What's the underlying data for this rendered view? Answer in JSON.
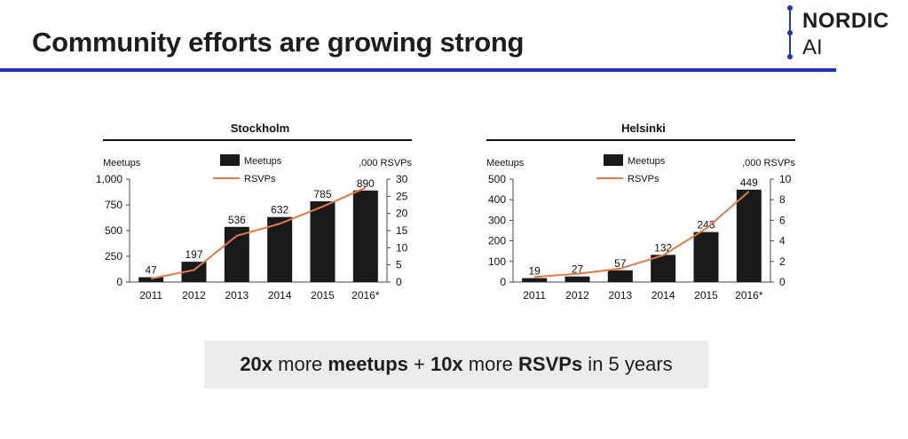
{
  "slide": {
    "title": "Community efforts are growing strong",
    "logo": {
      "line1": "NORDIC",
      "line2": "AI"
    },
    "callout": {
      "s1": "20x",
      "s2": " more ",
      "s3": "meetups",
      "s4": " + ",
      "s5": "10x",
      "s6": " more ",
      "s7": "RSVPs",
      "s8": " in 5 years"
    }
  },
  "chart_data": [
    {
      "type": "bar",
      "title": "Stockholm",
      "categories": [
        "2011",
        "2012",
        "2013",
        "2014",
        "2015",
        "2016*"
      ],
      "series": [
        {
          "name": "Meetups",
          "type": "bar",
          "axis": "left",
          "values": [
            47,
            197,
            536,
            632,
            785,
            890
          ],
          "color": "#1a1a1a"
        },
        {
          "name": "RSVPs",
          "type": "line",
          "axis": "right",
          "values": [
            1,
            3.5,
            13.5,
            17,
            22,
            27.5
          ],
          "color": "#e07b45"
        }
      ],
      "ylabel_left": "Meetups",
      "ylabel_right": ",000 RSVPs",
      "ylim_left": [
        0,
        1000
      ],
      "yticks_left": [
        "0",
        "250",
        "500",
        "750",
        "1,000"
      ],
      "ylim_right": [
        0,
        30
      ],
      "yticks_right": [
        "0",
        "5",
        "10",
        "15",
        "20",
        "25",
        "30"
      ],
      "data_labels": [
        "47",
        "197",
        "536",
        "632",
        "785",
        "890"
      ],
      "legend": [
        "Meetups",
        "RSVPs"
      ],
      "legend_position": "top-center",
      "grid": false
    },
    {
      "type": "bar",
      "title": "Helsinki",
      "categories": [
        "2011",
        "2012",
        "2013",
        "2014",
        "2015",
        "2016*"
      ],
      "series": [
        {
          "name": "Meetups",
          "type": "bar",
          "axis": "left",
          "values": [
            19,
            27,
            57,
            132,
            243,
            449
          ],
          "color": "#1a1a1a"
        },
        {
          "name": "RSVPs",
          "type": "line",
          "axis": "right",
          "values": [
            0.5,
            0.8,
            1.3,
            2.6,
            5.2,
            8.8
          ],
          "color": "#e07b45"
        }
      ],
      "ylabel_left": "Meetups",
      "ylabel_right": ",000 RSVPs",
      "ylim_left": [
        0,
        500
      ],
      "yticks_left": [
        "0",
        "100",
        "200",
        "300",
        "400",
        "500"
      ],
      "ylim_right": [
        0,
        10
      ],
      "yticks_right": [
        "0",
        "2",
        "4",
        "6",
        "8",
        "10"
      ],
      "data_labels": [
        "19",
        "27",
        "57",
        "132",
        "243",
        "449"
      ],
      "legend": [
        "Meetups",
        "RSVPs"
      ],
      "legend_position": "top-center",
      "grid": false
    }
  ]
}
